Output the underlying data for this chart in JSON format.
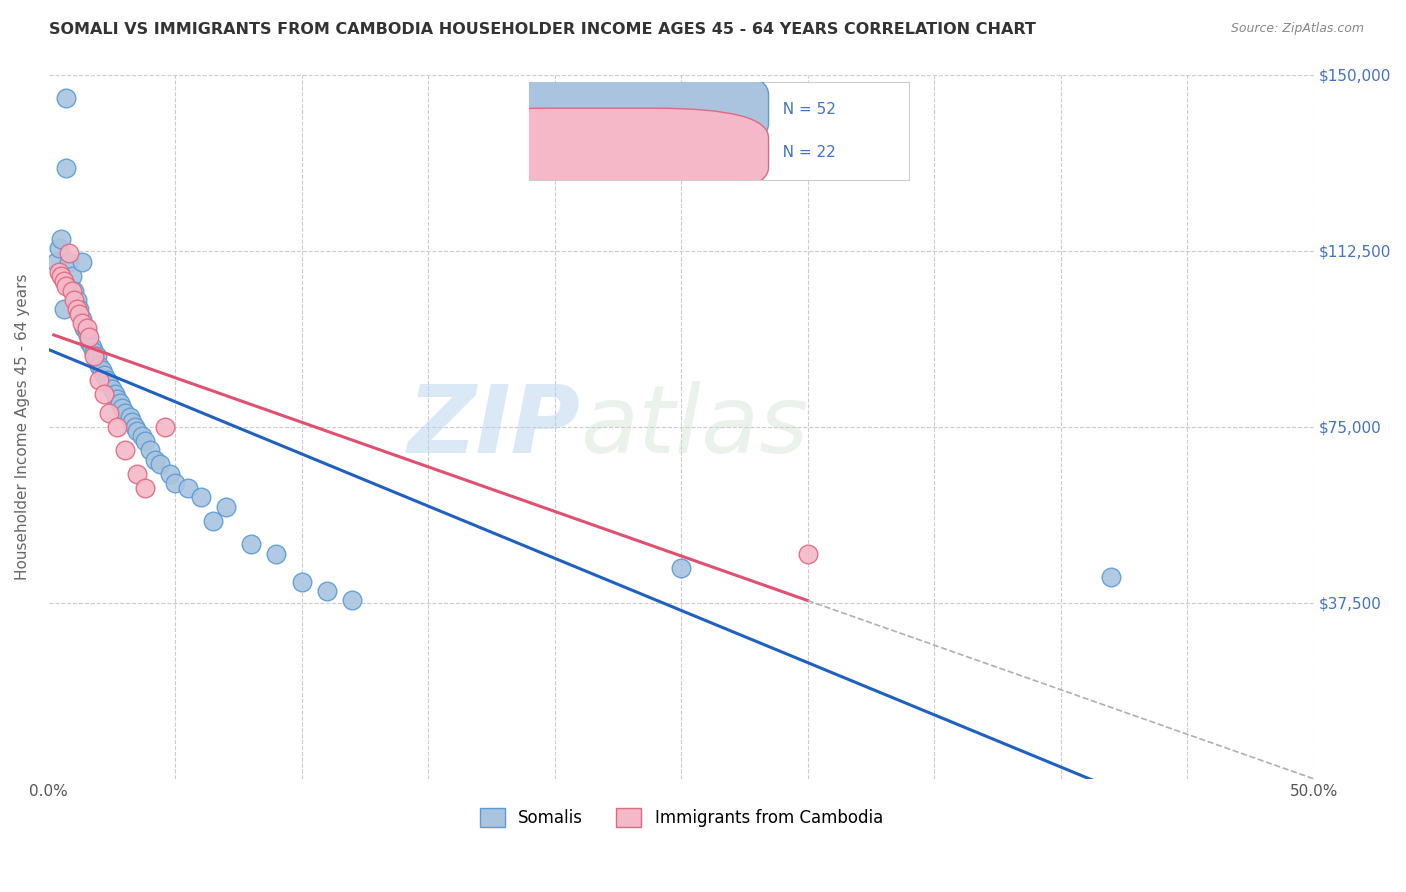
{
  "title": "SOMALI VS IMMIGRANTS FROM CAMBODIA HOUSEHOLDER INCOME AGES 45 - 64 YEARS CORRELATION CHART",
  "source": "Source: ZipAtlas.com",
  "ylabel": "Householder Income Ages 45 - 64 years",
  "xlim": [
    0.0,
    0.5
  ],
  "ylim": [
    0,
    150000
  ],
  "somali_color": "#aac4e0",
  "somali_edge_color": "#5b9bd5",
  "cambodia_color": "#f4b8c8",
  "cambodia_edge_color": "#e06880",
  "somali_line_color": "#2060c0",
  "cambodia_line_color": "#e05070",
  "dashed_line_color": "#b0b0b0",
  "legend_text_color": "#4472c4",
  "grid_color": "#cccccc",
  "watermark": "ZIPatlas",
  "background_color": "#ffffff",
  "somali_x": [
    0.003,
    0.004,
    0.005,
    0.006,
    0.007,
    0.007,
    0.008,
    0.009,
    0.01,
    0.011,
    0.012,
    0.013,
    0.013,
    0.014,
    0.015,
    0.016,
    0.017,
    0.018,
    0.019,
    0.02,
    0.021,
    0.022,
    0.023,
    0.024,
    0.025,
    0.026,
    0.027,
    0.028,
    0.029,
    0.03,
    0.032,
    0.033,
    0.034,
    0.035,
    0.037,
    0.038,
    0.04,
    0.042,
    0.044,
    0.048,
    0.05,
    0.055,
    0.06,
    0.065,
    0.07,
    0.08,
    0.09,
    0.1,
    0.11,
    0.12,
    0.25,
    0.42
  ],
  "somali_y": [
    110000,
    113000,
    115000,
    100000,
    145000,
    130000,
    110000,
    107000,
    104000,
    102000,
    100000,
    110000,
    98000,
    96000,
    95000,
    93000,
    92000,
    91000,
    90000,
    88000,
    87000,
    86000,
    85000,
    84000,
    83000,
    82000,
    81000,
    80000,
    79000,
    78000,
    77000,
    76000,
    75000,
    74000,
    73000,
    72000,
    70000,
    68000,
    67000,
    65000,
    63000,
    62000,
    60000,
    55000,
    58000,
    50000,
    48000,
    42000,
    40000,
    38000,
    45000,
    43000
  ],
  "cambodia_x": [
    0.004,
    0.005,
    0.006,
    0.007,
    0.008,
    0.009,
    0.01,
    0.011,
    0.012,
    0.013,
    0.015,
    0.016,
    0.018,
    0.02,
    0.022,
    0.024,
    0.027,
    0.03,
    0.035,
    0.038,
    0.046,
    0.3
  ],
  "cambodia_y": [
    108000,
    107000,
    106000,
    105000,
    112000,
    104000,
    102000,
    100000,
    99000,
    97000,
    96000,
    94000,
    90000,
    85000,
    82000,
    78000,
    75000,
    70000,
    65000,
    62000,
    75000,
    48000
  ]
}
